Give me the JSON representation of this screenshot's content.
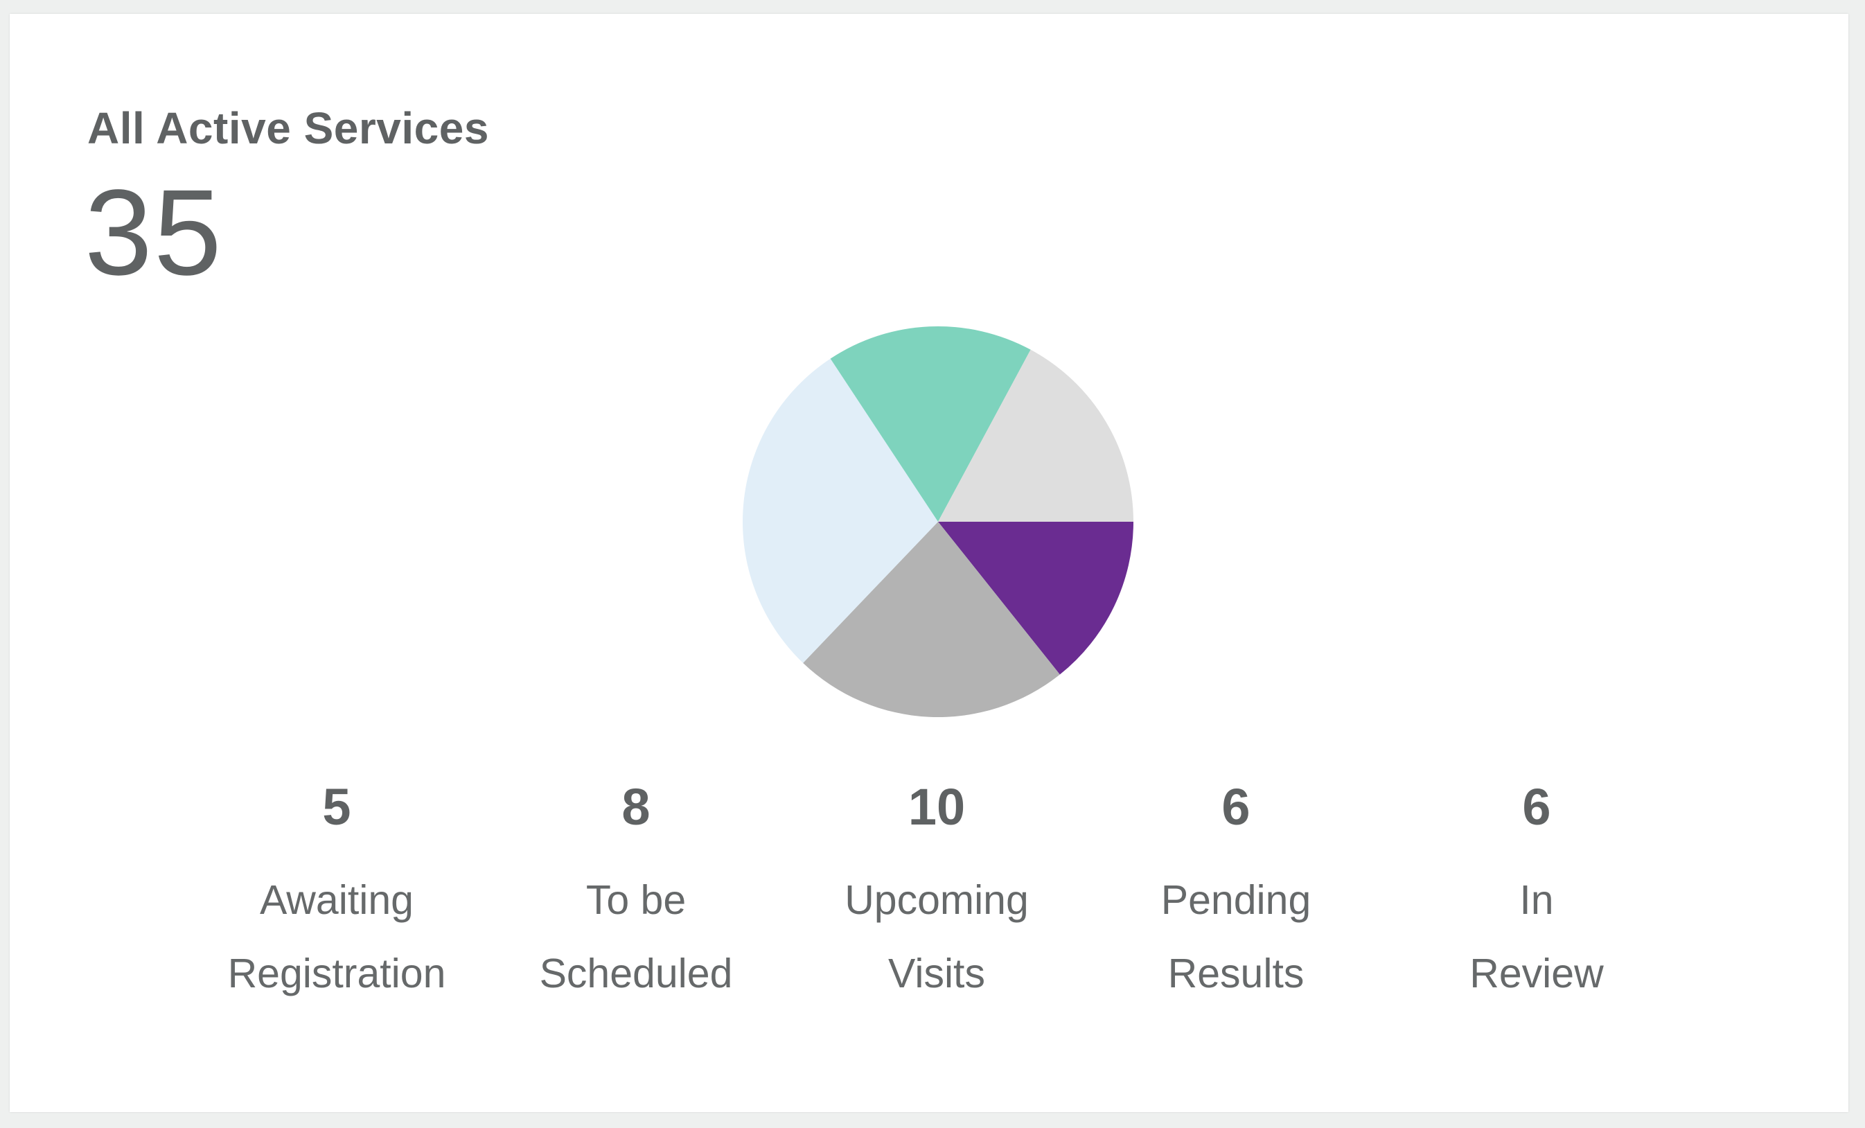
{
  "widget": {
    "title": "All Active Services",
    "total": "35"
  },
  "chart_data": {
    "type": "pie",
    "categories": [
      "Awaiting Registration",
      "To be Scheduled",
      "Upcoming Visits",
      "Pending Results",
      "In Review"
    ],
    "values": [
      5,
      8,
      10,
      6,
      6
    ],
    "colors": [
      "#6a2c91",
      "#b3b3b3",
      "#e1eef8",
      "#7ed3bd",
      "#dedede"
    ]
  },
  "stats": [
    {
      "value": "5",
      "label_line1": "Awaiting",
      "label_line2": "Registration"
    },
    {
      "value": "8",
      "label_line1": "To be",
      "label_line2": "Scheduled"
    },
    {
      "value": "10",
      "label_line1": "Upcoming",
      "label_line2": "Visits"
    },
    {
      "value": "6",
      "label_line1": "Pending",
      "label_line2": "Results"
    },
    {
      "value": "6",
      "label_line1": "In",
      "label_line2": "Review"
    }
  ]
}
